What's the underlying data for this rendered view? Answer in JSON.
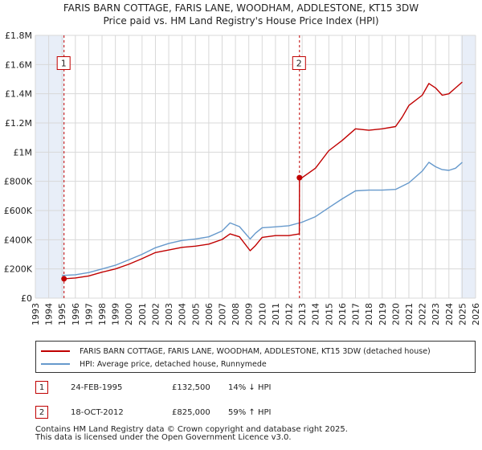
{
  "titles": {
    "line1": "FARIS BARN COTTAGE, FARIS LANE, WOODHAM, ADDLESTONE, KT15 3DW",
    "line2": "Price paid vs. HM Land Registry's House Price Index (HPI)"
  },
  "colors": {
    "property": "#c00000",
    "hpi": "#6699cc",
    "shade": "#e8eef8",
    "grid": "#d8d8d8"
  },
  "legend": {
    "property_label": "FARIS BARN COTTAGE, FARIS LANE, WOODHAM, ADDLESTONE, KT15 3DW (detached house)",
    "hpi_label": "HPI: Average price, detached house, Runnymede"
  },
  "transactions": [
    {
      "marker": "1",
      "date": "24-FEB-1995",
      "price": "£132,500",
      "hpi_change": "14% ↓ HPI"
    },
    {
      "marker": "2",
      "date": "18-OCT-2012",
      "price": "£825,000",
      "hpi_change": "59% ↑ HPI"
    }
  ],
  "footer": {
    "line1": "Contains HM Land Registry data © Crown copyright and database right 2025.",
    "line2": "This data is licensed under the Open Government Licence v3.0."
  },
  "chart_data": {
    "type": "line",
    "title": "Price paid vs. HM Land Registry's House Price Index (HPI)",
    "xlim": [
      1993,
      2026
    ],
    "ylim": [
      0,
      1800000
    ],
    "x_ticks": [
      1993,
      1994,
      1995,
      1996,
      1997,
      1998,
      1999,
      2000,
      2001,
      2002,
      2003,
      2004,
      2005,
      2006,
      2007,
      2008,
      2009,
      2010,
      2011,
      2012,
      2013,
      2014,
      2015,
      2016,
      2017,
      2018,
      2019,
      2020,
      2021,
      2022,
      2023,
      2024,
      2025,
      2026
    ],
    "y_ticks": [
      {
        "value": 0,
        "label": "£0"
      },
      {
        "value": 200000,
        "label": "£200K"
      },
      {
        "value": 400000,
        "label": "£400K"
      },
      {
        "value": 600000,
        "label": "£600K"
      },
      {
        "value": 800000,
        "label": "£800K"
      },
      {
        "value": 1000000,
        "label": "£1M"
      },
      {
        "value": 1200000,
        "label": "£1.2M"
      },
      {
        "value": 1400000,
        "label": "£1.4M"
      },
      {
        "value": 1600000,
        "label": "£1.6M"
      },
      {
        "value": 1800000,
        "label": "£1.8M"
      }
    ],
    "shaded_ranges": [
      [
        1993,
        1995.15
      ],
      [
        2024.9,
        2026
      ]
    ],
    "markers": [
      {
        "label": "1",
        "x": 1995.15,
        "y": 132500
      },
      {
        "label": "2",
        "x": 2012.8,
        "y": 825000
      }
    ],
    "series": [
      {
        "name": "FARIS BARN COTTAGE, FARIS LANE, WOODHAM, ADDLESTONE, KT15 3DW (detached house)",
        "color": "#c00000",
        "x": [
          1995.15,
          1996,
          1997,
          1998,
          1999,
          2000,
          2001,
          2002,
          2003,
          2004,
          2005,
          2006,
          2007,
          2007.6,
          2008.3,
          2009.1,
          2009.5,
          2010,
          2011,
          2012,
          2012.79,
          2012.8,
          2013,
          2014,
          2015,
          2016,
          2017,
          2018,
          2019,
          2020,
          2020.5,
          2021,
          2022,
          2022.5,
          2023,
          2023.5,
          2024,
          2024.5,
          2025
        ],
        "y": [
          132500,
          138000,
          152000,
          178000,
          200000,
          232000,
          270000,
          312000,
          330000,
          348000,
          356000,
          370000,
          402000,
          440000,
          420000,
          325000,
          360000,
          416000,
          428000,
          428000,
          440000,
          825000,
          825000,
          890000,
          1010000,
          1080000,
          1160000,
          1150000,
          1160000,
          1175000,
          1240000,
          1320000,
          1390000,
          1470000,
          1440000,
          1390000,
          1400000,
          1440000,
          1480000
        ]
      },
      {
        "name": "HPI: Average price, detached house, Runnymede",
        "color": "#6699cc",
        "x": [
          1995,
          1996,
          1997,
          1998,
          1999,
          2000,
          2001,
          2002,
          2003,
          2004,
          2005,
          2006,
          2007,
          2007.6,
          2008.3,
          2009.1,
          2009.5,
          2010,
          2011,
          2012,
          2013,
          2014,
          2015,
          2016,
          2017,
          2018,
          2019,
          2020,
          2021,
          2022,
          2022.5,
          2023,
          2023.5,
          2024,
          2024.5,
          2025
        ],
        "y": [
          155000,
          160000,
          175000,
          200000,
          225000,
          262000,
          300000,
          345000,
          375000,
          395000,
          405000,
          420000,
          460000,
          515000,
          490000,
          405000,
          445000,
          482000,
          488000,
          496000,
          520000,
          558000,
          620000,
          680000,
          735000,
          740000,
          740000,
          745000,
          790000,
          870000,
          930000,
          900000,
          880000,
          875000,
          890000,
          930000
        ]
      }
    ]
  }
}
